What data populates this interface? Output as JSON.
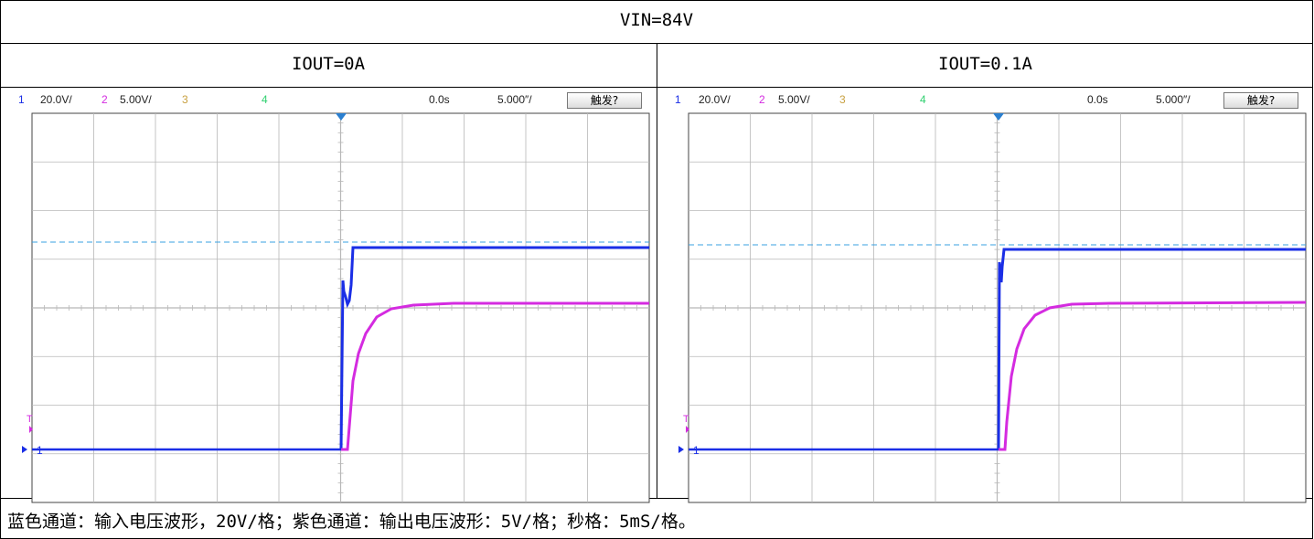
{
  "title": "VIN=84V",
  "columns": [
    {
      "label": "IOUT=0A",
      "scope": {
        "ch1": "1",
        "ch1_scale": "20.0V/",
        "ch2": "2",
        "ch2_scale": "5.00V/",
        "ch3": "3",
        "ch4": "4",
        "delay": "0.0s",
        "timebase": "5.000″/",
        "trigger_button": "触发?",
        "ch1_marker": "1",
        "trig_marker": "T"
      }
    },
    {
      "label": "IOUT=0.1A",
      "scope": {
        "ch1": "1",
        "ch1_scale": "20.0V/",
        "ch2": "2",
        "ch2_scale": "5.00V/",
        "ch3": "3",
        "ch4": "4",
        "delay": "0.0s",
        "timebase": "5.000″/",
        "trigger_button": "触发?",
        "ch1_marker": "1",
        "trig_marker": "T"
      }
    }
  ],
  "caption": "蓝色通道：输入电压波形，20V/格；紫色通道：输出电压波形：5V/格；秒格：5mS/格。",
  "colors": {
    "ch1": "#1a2ee6",
    "ch2": "#d42be0",
    "ch3": "#c8a040",
    "ch4": "#30d070",
    "grid": "#b8b8b8",
    "ref_line": "#3aa0e0",
    "trigger_marker": "#2a7fd0"
  }
}
